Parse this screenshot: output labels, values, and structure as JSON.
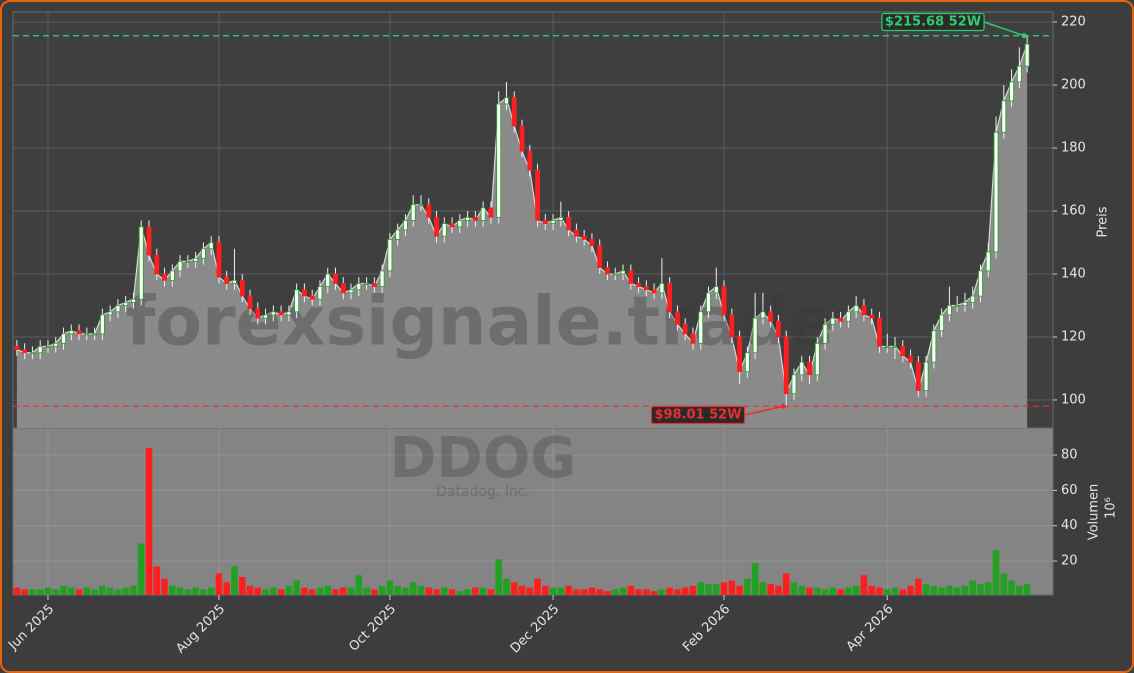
{
  "chart_data": {
    "type": "candlestick",
    "watermark": "forexsignale.trade",
    "ticker": "DDOG",
    "company": "Datadog, Inc.",
    "y_label": "Preis",
    "volume_label": "Volumen",
    "volume_scale": "10⁶",
    "categories": [
      null,
      null,
      null,
      null,
      "Jun 2025",
      null,
      null,
      null,
      null,
      null,
      null,
      null,
      null,
      null,
      null,
      null,
      null,
      null,
      null,
      null,
      null,
      null,
      null,
      null,
      null,
      null,
      "Aug 2025",
      null,
      null,
      null,
      null,
      null,
      null,
      null,
      null,
      null,
      null,
      null,
      null,
      null,
      null,
      null,
      null,
      null,
      null,
      null,
      null,
      null,
      "Oct 2025",
      null,
      null,
      null,
      null,
      null,
      null,
      null,
      null,
      null,
      null,
      null,
      null,
      null,
      null,
      null,
      null,
      null,
      null,
      null,
      null,
      "Dec 2025",
      null,
      null,
      null,
      null,
      null,
      null,
      null,
      null,
      null,
      null,
      null,
      null,
      null,
      null,
      null,
      null,
      null,
      null,
      null,
      null,
      null,
      "Feb 2026",
      null,
      null,
      null,
      null,
      null,
      null,
      null,
      null,
      null,
      null,
      null,
      null,
      null,
      null,
      null,
      null,
      null,
      null,
      null,
      null,
      "Apr 2026",
      null,
      null,
      null,
      null,
      null,
      null,
      null,
      null,
      null,
      null,
      null,
      null,
      null,
      null,
      null,
      null,
      null,
      null
    ],
    "open": [
      117,
      116,
      115,
      115,
      117,
      117,
      118,
      121,
      122,
      121,
      121,
      121,
      127,
      128,
      130,
      131,
      132,
      155,
      146,
      140,
      138,
      141,
      144,
      144,
      145,
      148,
      150,
      139,
      137,
      138,
      133,
      129,
      126,
      127,
      128,
      127,
      128,
      135,
      133,
      132,
      136,
      140,
      137,
      134,
      135,
      137,
      137,
      136,
      141,
      151,
      154,
      157,
      162,
      162,
      158,
      152,
      156,
      155,
      157,
      158,
      157,
      161,
      158,
      194,
      196,
      187,
      179,
      173,
      157,
      156,
      157,
      158,
      154,
      152,
      151,
      149,
      142,
      140,
      140,
      141,
      137,
      136,
      135,
      134,
      137,
      128,
      124,
      121,
      118,
      128,
      134,
      136,
      127,
      120,
      109,
      115,
      126,
      128,
      125,
      120,
      102,
      108,
      112,
      108,
      118,
      124,
      126,
      125,
      128,
      130,
      127,
      126,
      117,
      117,
      117,
      114,
      112,
      103,
      112,
      122,
      127,
      130,
      130,
      131,
      133,
      141,
      147,
      185,
      195,
      201,
      206
    ],
    "high": [
      119,
      118,
      117,
      119,
      119,
      120,
      123,
      124,
      124,
      123,
      123,
      129,
      130,
      132,
      133,
      134,
      157,
      157,
      148,
      142,
      143,
      146,
      146,
      147,
      150,
      152,
      152,
      141,
      148,
      140,
      135,
      131,
      129,
      130,
      130,
      130,
      137,
      137,
      135,
      138,
      142,
      142,
      139,
      137,
      139,
      139,
      139,
      143,
      153,
      156,
      159,
      165,
      165,
      164,
      160,
      158,
      158,
      159,
      160,
      160,
      163,
      163,
      198,
      201,
      198,
      189,
      181,
      175,
      159,
      159,
      163,
      160,
      156,
      154,
      153,
      151,
      144,
      142,
      143,
      143,
      139,
      138,
      137,
      145,
      139,
      130,
      126,
      123,
      130,
      136,
      142,
      138,
      129,
      122,
      117,
      134,
      134,
      130,
      127,
      122,
      110,
      114,
      114,
      120,
      126,
      128,
      128,
      130,
      133,
      132,
      129,
      128,
      121,
      120,
      119,
      116,
      114,
      114,
      124,
      129,
      136,
      133,
      134,
      136,
      143,
      150,
      190,
      200,
      205,
      212,
      215.68
    ],
    "low": [
      114,
      113,
      113,
      113,
      115,
      115,
      116,
      119,
      119,
      119,
      119,
      119,
      125,
      126,
      128,
      129,
      130,
      144,
      138,
      136,
      136,
      139,
      142,
      142,
      143,
      146,
      137,
      135,
      135,
      131,
      127,
      124,
      124,
      125,
      125,
      125,
      126,
      131,
      130,
      130,
      134,
      135,
      132,
      132,
      133,
      135,
      134,
      134,
      139,
      149,
      152,
      155,
      160,
      156,
      150,
      150,
      153,
      153,
      155,
      155,
      155,
      156,
      156,
      192,
      185,
      177,
      171,
      155,
      154,
      154,
      155,
      152,
      150,
      149,
      147,
      140,
      138,
      138,
      138,
      135,
      134,
      133,
      132,
      132,
      126,
      122,
      119,
      116,
      116,
      126,
      132,
      125,
      118,
      105,
      107,
      113,
      124,
      123,
      118,
      98.01,
      100,
      106,
      105,
      106,
      116,
      122,
      123,
      123,
      126,
      125,
      124,
      115,
      115,
      113,
      112,
      110,
      101,
      101,
      110,
      120,
      125,
      128,
      128,
      129,
      131,
      139,
      145,
      183,
      193,
      199,
      204
    ],
    "close": [
      116,
      115,
      115,
      117,
      117,
      118,
      121,
      122,
      121,
      121,
      121,
      127,
      128,
      130,
      131,
      132,
      155,
      146,
      140,
      138,
      141,
      144,
      144,
      145,
      148,
      150,
      139,
      137,
      138,
      133,
      129,
      126,
      127,
      128,
      127,
      128,
      135,
      133,
      132,
      136,
      140,
      137,
      134,
      135,
      137,
      137,
      136,
      141,
      151,
      154,
      157,
      162,
      162,
      158,
      152,
      156,
      155,
      157,
      158,
      157,
      161,
      158,
      194,
      196,
      187,
      179,
      173,
      157,
      156,
      157,
      158,
      154,
      152,
      151,
      149,
      142,
      140,
      140,
      141,
      137,
      136,
      135,
      134,
      137,
      128,
      124,
      121,
      118,
      128,
      134,
      136,
      127,
      120,
      109,
      115,
      126,
      128,
      125,
      120,
      102,
      108,
      112,
      108,
      118,
      124,
      126,
      125,
      128,
      130,
      127,
      126,
      117,
      117,
      117,
      114,
      112,
      103,
      112,
      122,
      127,
      130,
      130,
      131,
      133,
      141,
      147,
      185,
      195,
      201,
      206,
      213
    ],
    "volume": [
      5,
      4,
      4,
      4,
      5,
      4,
      6,
      5,
      4,
      5,
      4,
      6,
      5,
      4,
      5,
      6,
      30,
      84,
      17,
      10,
      6,
      5,
      4,
      5,
      4,
      5,
      13,
      8,
      17,
      11,
      6,
      5,
      4,
      5,
      4,
      6,
      9,
      5,
      4,
      5,
      6,
      4,
      5,
      5,
      12,
      5,
      4,
      6,
      9,
      6,
      5,
      8,
      6,
      5,
      4,
      5,
      4,
      3,
      4,
      5,
      5,
      4,
      21,
      10,
      8,
      6,
      5,
      10,
      6,
      5,
      5,
      6,
      4,
      4,
      5,
      4,
      3,
      4,
      5,
      6,
      4,
      4,
      3,
      4,
      5,
      4,
      5,
      6,
      8,
      7,
      7,
      8,
      9,
      6,
      10,
      19,
      8,
      7,
      6,
      13,
      8,
      6,
      5,
      5,
      4,
      5,
      4,
      5,
      6,
      12,
      6,
      5,
      4,
      5,
      4,
      6,
      10,
      7,
      6,
      5,
      6,
      5,
      6,
      9,
      7,
      8,
      26,
      13,
      9,
      6,
      7
    ],
    "ylim": [
      91.1,
      223.2
    ],
    "yticks": [
      100,
      120,
      140,
      160,
      180,
      200,
      220
    ],
    "volume_ylim": [
      0.8,
      95.3
    ],
    "volume_yticks": [
      20,
      40,
      60,
      80
    ],
    "up_color": "#22a022",
    "down_color": "#ff1f1f",
    "grid": true,
    "annotations": [
      {
        "text": "$215.68 52W",
        "value": 215.68,
        "color": "#2ecc71"
      },
      {
        "text": "$98.01 52W",
        "value": 98.01,
        "color": "#e83030"
      }
    ]
  }
}
